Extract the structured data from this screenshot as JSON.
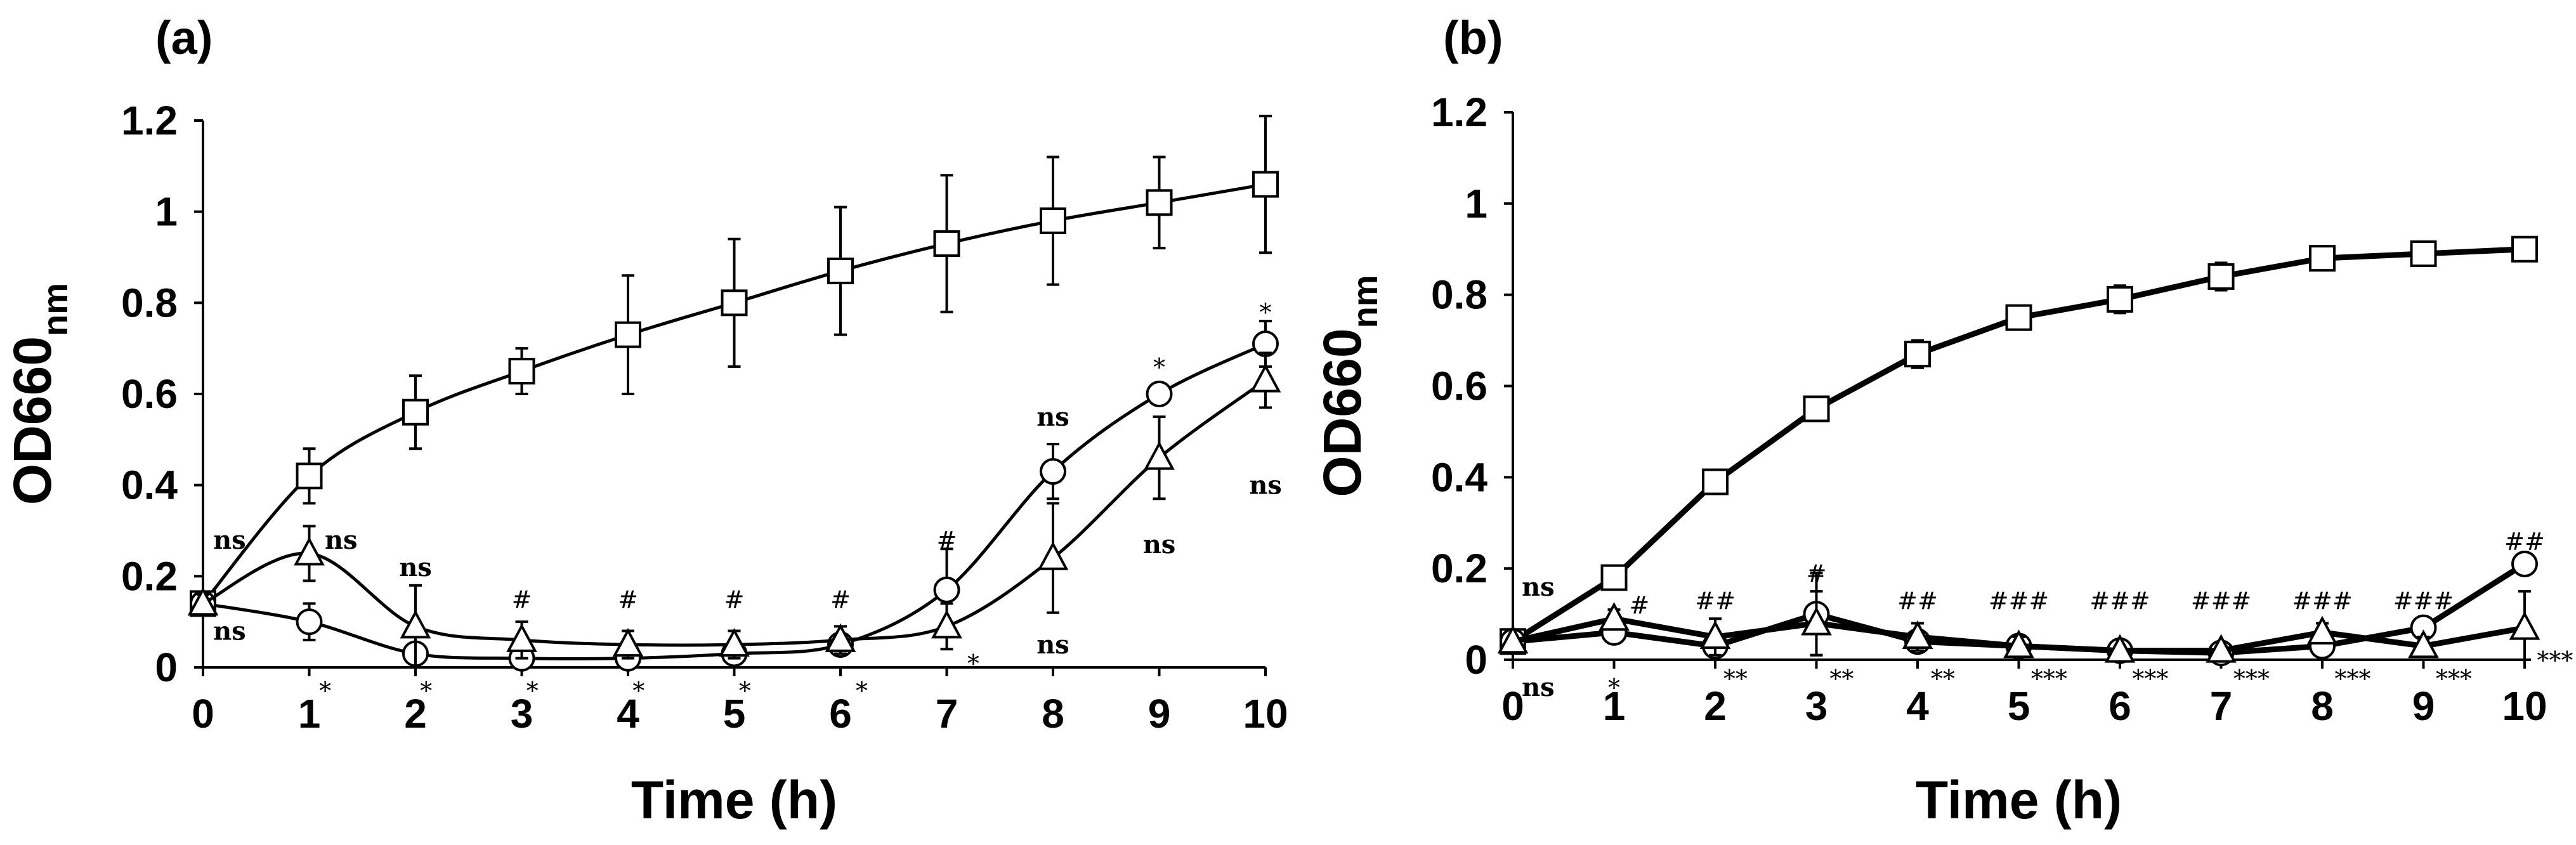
{
  "chart_data": [
    {
      "panel": "a",
      "panel_label": "(a)",
      "type": "line",
      "xlabel": "Time (h)",
      "ylabel": "OD660",
      "ylabel_sub": "nm",
      "ylim": [
        0,
        1.2
      ],
      "xlim": [
        0,
        10
      ],
      "yticks": [
        "0",
        "0.2",
        "0.4",
        "0.6",
        "0.8",
        "1",
        "1.2"
      ],
      "xticks": [
        "0",
        "1",
        "2",
        "3",
        "4",
        "5",
        "6",
        "7",
        "8",
        "9",
        "10"
      ],
      "series": [
        {
          "name": "square",
          "marker": "square",
          "x": [
            0,
            1,
            2,
            3,
            4,
            5,
            6,
            7,
            8,
            9,
            10
          ],
          "y": [
            0.14,
            0.42,
            0.56,
            0.65,
            0.73,
            0.8,
            0.87,
            0.93,
            0.98,
            1.02,
            1.06
          ],
          "err": [
            0.02,
            0.06,
            0.08,
            0.05,
            0.13,
            0.14,
            0.14,
            0.15,
            0.14,
            0.1,
            0.15
          ]
        },
        {
          "name": "circle",
          "marker": "circle",
          "x": [
            0,
            1,
            2,
            3,
            4,
            5,
            6,
            7,
            8,
            9,
            10
          ],
          "y": [
            0.14,
            0.1,
            0.03,
            0.02,
            0.02,
            0.03,
            0.05,
            0.17,
            0.43,
            0.6,
            0.71
          ],
          "err": [
            0.02,
            0.04,
            0.02,
            0.02,
            0.02,
            0.02,
            0.02,
            0.09,
            0.06,
            0.02,
            0.05
          ]
        },
        {
          "name": "triangle",
          "marker": "triangle",
          "x": [
            0,
            1,
            2,
            3,
            4,
            5,
            6,
            7,
            8,
            9,
            10
          ],
          "y": [
            0.14,
            0.25,
            0.09,
            0.06,
            0.05,
            0.05,
            0.06,
            0.09,
            0.24,
            0.46,
            0.63
          ],
          "err": [
            0.02,
            0.06,
            0.09,
            0.04,
            0.03,
            0.03,
            0.03,
            0.05,
            0.12,
            0.09,
            0.06
          ]
        }
      ],
      "annotations": [
        {
          "text": "ns",
          "x": 0.25,
          "y": 0.28,
          "style": "b"
        },
        {
          "text": "ns",
          "x": 0.25,
          "y": 0.08,
          "style": "b"
        },
        {
          "text": "ns",
          "x": 1.3,
          "y": 0.28,
          "style": "b"
        },
        {
          "text": "ns",
          "x": 2.0,
          "y": 0.22,
          "style": "b"
        },
        {
          "text": "#",
          "x": 3.0,
          "y": 0.15,
          "style": "n"
        },
        {
          "text": "#",
          "x": 4.0,
          "y": 0.15,
          "style": "n"
        },
        {
          "text": "#",
          "x": 5.0,
          "y": 0.15,
          "style": "n"
        },
        {
          "text": "#",
          "x": 6.0,
          "y": 0.15,
          "style": "n"
        },
        {
          "text": "#",
          "x": 7.0,
          "y": 0.28,
          "style": "n"
        },
        {
          "text": "ns",
          "x": 8.0,
          "y": 0.55,
          "style": "b"
        },
        {
          "text": "ns",
          "x": 8.0,
          "y": 0.05,
          "style": "b"
        },
        {
          "text": "*",
          "x": 9.0,
          "y": 0.66,
          "style": "n"
        },
        {
          "text": "ns",
          "x": 9.0,
          "y": 0.27,
          "style": "b"
        },
        {
          "text": "*",
          "x": 10.0,
          "y": 0.78,
          "style": "n"
        },
        {
          "text": "ns",
          "x": 10.0,
          "y": 0.4,
          "style": "b"
        },
        {
          "text": "*",
          "x": 1.15,
          "y": -0.05,
          "style": "n"
        },
        {
          "text": "*",
          "x": 2.1,
          "y": -0.05,
          "style": "n"
        },
        {
          "text": "*",
          "x": 3.1,
          "y": -0.05,
          "style": "n"
        },
        {
          "text": "*",
          "x": 4.1,
          "y": -0.05,
          "style": "n"
        },
        {
          "text": "*",
          "x": 5.1,
          "y": -0.05,
          "style": "n"
        },
        {
          "text": "*",
          "x": 6.2,
          "y": -0.05,
          "style": "n"
        },
        {
          "text": "*",
          "x": 7.25,
          "y": 0.01,
          "style": "n"
        }
      ]
    },
    {
      "panel": "b",
      "panel_label": "(b)",
      "type": "line",
      "xlabel": "Time (h)",
      "ylabel": "OD660",
      "ylabel_sub": "nm",
      "ylim": [
        0,
        1.2
      ],
      "xlim": [
        0,
        10
      ],
      "yticks": [
        "0",
        "0.2",
        "0.4",
        "0.6",
        "0.8",
        "1",
        "1.2"
      ],
      "xticks": [
        "0",
        "1",
        "2",
        "3",
        "4",
        "5",
        "6",
        "7",
        "8",
        "9",
        "10"
      ],
      "series": [
        {
          "name": "square",
          "marker": "square",
          "x": [
            0,
            1,
            2,
            3,
            4,
            5,
            6,
            7,
            8,
            9,
            10
          ],
          "y": [
            0.04,
            0.18,
            0.39,
            0.55,
            0.67,
            0.75,
            0.79,
            0.84,
            0.88,
            0.89,
            0.9
          ],
          "err": [
            0.01,
            0.02,
            0.02,
            0.02,
            0.03,
            0.02,
            0.03,
            0.03,
            0.02,
            0.02,
            0.02
          ]
        },
        {
          "name": "circle",
          "marker": "circle",
          "x": [
            0,
            1,
            2,
            3,
            4,
            5,
            6,
            7,
            8,
            9,
            10
          ],
          "y": [
            0.04,
            0.06,
            0.03,
            0.1,
            0.04,
            0.03,
            0.02,
            0.015,
            0.03,
            0.07,
            0.21
          ],
          "err": [
            0.01,
            0.02,
            0.02,
            0.09,
            0.02,
            0.01,
            0.01,
            0.01,
            0.01,
            0.02,
            0.02
          ]
        },
        {
          "name": "triangle",
          "marker": "triangle",
          "x": [
            0,
            1,
            2,
            3,
            4,
            5,
            6,
            7,
            8,
            9,
            10
          ],
          "y": [
            0.04,
            0.09,
            0.05,
            0.08,
            0.05,
            0.03,
            0.02,
            0.02,
            0.06,
            0.03,
            0.07
          ],
          "err": [
            0.01,
            0.02,
            0.04,
            0.07,
            0.03,
            0.02,
            0.01,
            0.01,
            0.02,
            0.02,
            0.08
          ]
        }
      ],
      "annotations": [
        {
          "text": "ns",
          "x": 0.25,
          "y": 0.16,
          "style": "b"
        },
        {
          "text": "#",
          "x": 1.25,
          "y": 0.12,
          "style": "n"
        },
        {
          "text": "##",
          "x": 2.0,
          "y": 0.13,
          "style": "n"
        },
        {
          "text": "#",
          "x": 3.0,
          "y": 0.19,
          "style": "n"
        },
        {
          "text": "##",
          "x": 4.0,
          "y": 0.13,
          "style": "n"
        },
        {
          "text": "###",
          "x": 5.0,
          "y": 0.13,
          "style": "n"
        },
        {
          "text": "###",
          "x": 6.0,
          "y": 0.13,
          "style": "n"
        },
        {
          "text": "###",
          "x": 7.0,
          "y": 0.13,
          "style": "n"
        },
        {
          "text": "###",
          "x": 8.0,
          "y": 0.13,
          "style": "n"
        },
        {
          "text": "###",
          "x": 9.0,
          "y": 0.13,
          "style": "n"
        },
        {
          "text": "##",
          "x": 10.0,
          "y": 0.26,
          "style": "n"
        },
        {
          "text": "ns",
          "x": 0.25,
          "y": -0.06,
          "style": "b"
        },
        {
          "text": "*",
          "x": 1.0,
          "y": -0.06,
          "style": "n"
        },
        {
          "text": "**",
          "x": 2.2,
          "y": -0.04,
          "style": "n"
        },
        {
          "text": "**",
          "x": 3.25,
          "y": -0.04,
          "style": "n"
        },
        {
          "text": "**",
          "x": 4.25,
          "y": -0.04,
          "style": "n"
        },
        {
          "text": "***",
          "x": 5.3,
          "y": -0.04,
          "style": "n"
        },
        {
          "text": "***",
          "x": 6.3,
          "y": -0.04,
          "style": "n"
        },
        {
          "text": "***",
          "x": 7.3,
          "y": -0.04,
          "style": "n"
        },
        {
          "text": "***",
          "x": 8.3,
          "y": -0.04,
          "style": "n"
        },
        {
          "text": "***",
          "x": 9.3,
          "y": -0.04,
          "style": "n"
        },
        {
          "text": "***",
          "x": 10.3,
          "y": 0.0,
          "style": "n"
        }
      ]
    }
  ]
}
